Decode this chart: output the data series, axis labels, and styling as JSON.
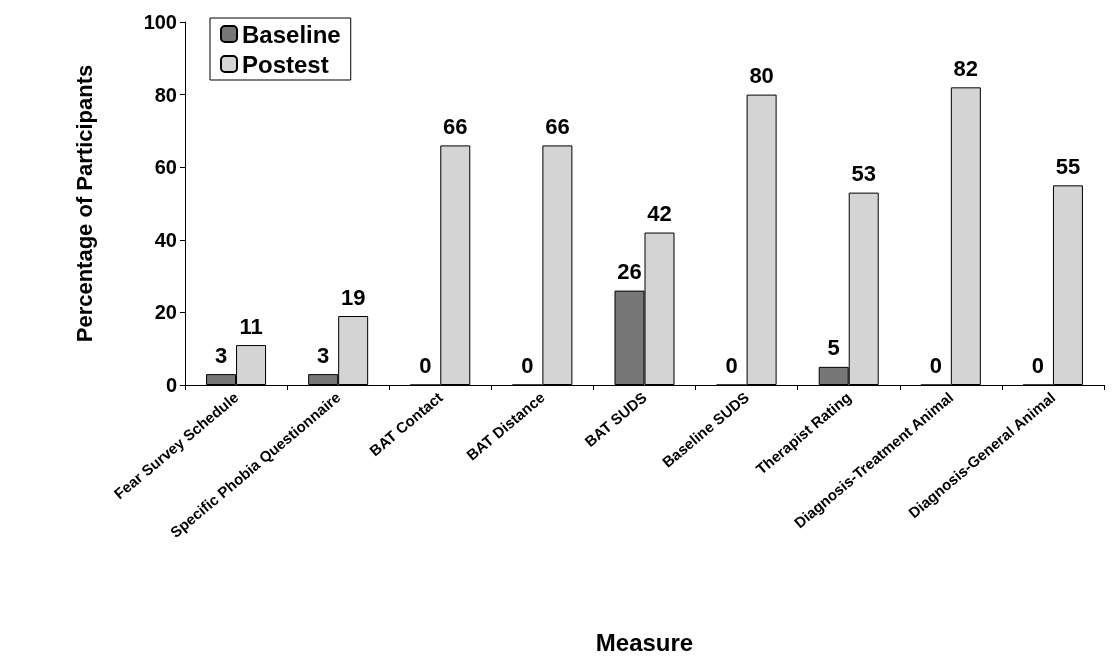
{
  "chart_data": {
    "type": "bar",
    "xlabel": "Measure",
    "ylabel": "Percentage of Participants",
    "categories": [
      "Fear Survey Schedule",
      "Specific Phobia Questionnaire",
      "BAT Contact",
      "BAT Distance",
      "BAT SUDS",
      "Baseline SUDS",
      "Therapist Rating",
      "Diagnosis-Treatment Animal",
      "Diagnosis-General Animal"
    ],
    "series": [
      {
        "name": "Baseline",
        "color": "#777777",
        "values": [
          3,
          3,
          0,
          0,
          26,
          0,
          5,
          0,
          0
        ]
      },
      {
        "name": "Postest",
        "color": "#d4d4d4",
        "values": [
          11,
          19,
          66,
          66,
          42,
          80,
          53,
          82,
          55
        ]
      }
    ],
    "ylim": [
      0,
      100
    ],
    "yticks": [
      0,
      20,
      40,
      60,
      80,
      100
    ],
    "grid": false,
    "legend": "top left",
    "data_labels": true
  }
}
